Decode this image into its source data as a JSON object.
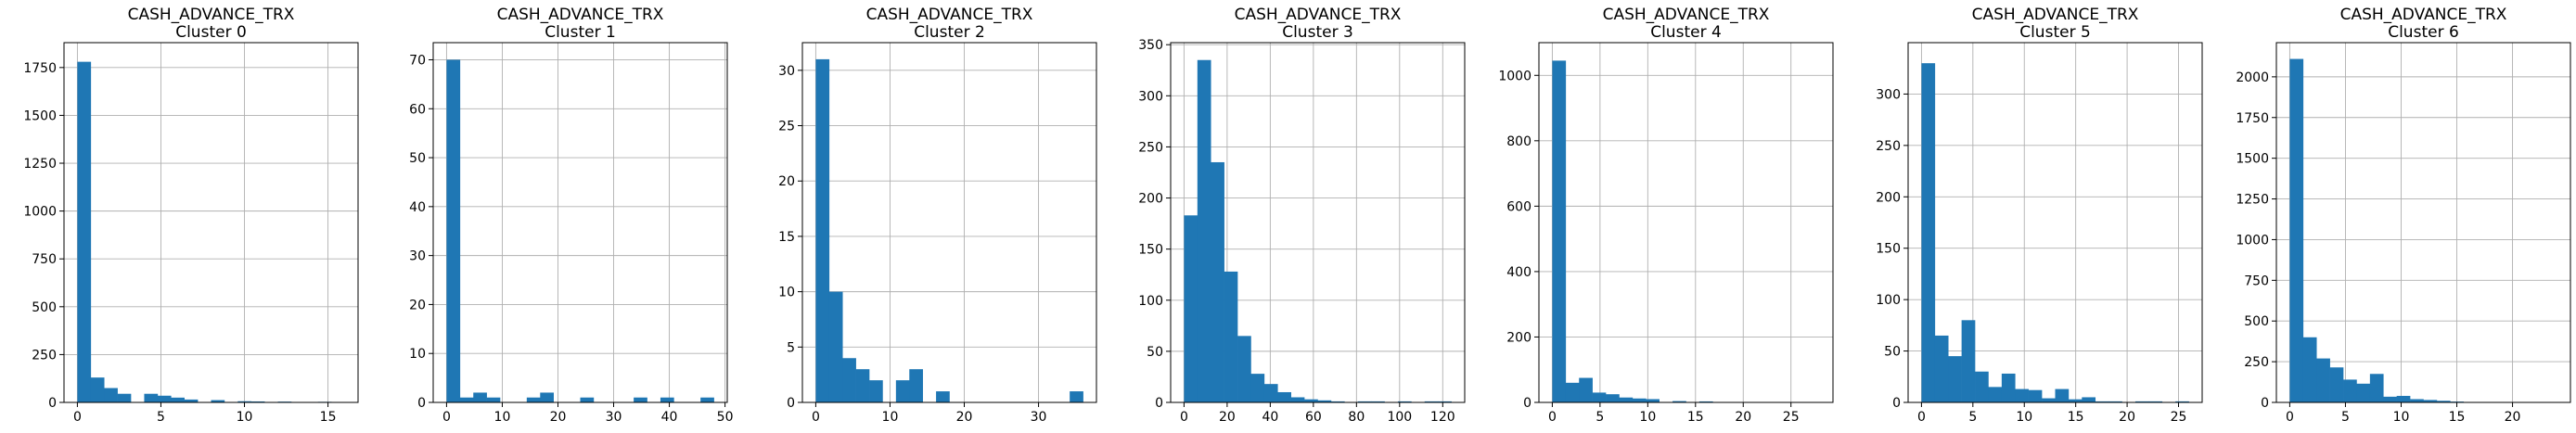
{
  "figure": {
    "bar_color": "#1f77b4",
    "grid": true
  },
  "chart_data": [
    {
      "type": "bar",
      "title": "CASH_ADVANCE_TRX",
      "subtitle": "Cluster 0",
      "xlim": [
        -0.8,
        16.8
      ],
      "ylim": [
        0,
        1880
      ],
      "xticks": [
        0,
        5,
        10,
        15
      ],
      "yticks": [
        0,
        250,
        500,
        750,
        1000,
        1250,
        1500,
        1750
      ],
      "bin_edges": [
        0,
        0.8,
        1.6,
        2.4,
        3.2,
        4.0,
        4.8,
        5.6,
        6.4,
        7.2,
        8.0,
        8.8,
        9.6,
        10.4,
        11.2,
        12.0,
        12.8,
        13.6,
        14.4,
        15.2,
        16.0
      ],
      "values": [
        1780,
        130,
        75,
        45,
        0,
        45,
        35,
        25,
        15,
        0,
        12,
        0,
        6,
        5,
        0,
        4,
        0,
        0,
        3,
        2
      ]
    },
    {
      "type": "bar",
      "title": "CASH_ADVANCE_TRX",
      "subtitle": "Cluster 1",
      "xlim": [
        -2.4,
        50.4
      ],
      "ylim": [
        0,
        73.5
      ],
      "xticks": [
        0,
        10,
        20,
        30,
        40,
        50
      ],
      "yticks": [
        0,
        10,
        20,
        30,
        40,
        50,
        60,
        70
      ],
      "bin_edges": [
        0,
        2.4,
        4.8,
        7.2,
        9.6,
        12.0,
        14.4,
        16.8,
        19.2,
        21.6,
        24.0,
        26.4,
        28.8,
        31.2,
        33.6,
        36.0,
        38.4,
        40.8,
        43.2,
        45.6,
        48.0
      ],
      "values": [
        70,
        1,
        2,
        1,
        0,
        0,
        1,
        2,
        0,
        0,
        1,
        0,
        0,
        0,
        1,
        0,
        1,
        0,
        0,
        1
      ]
    },
    {
      "type": "bar",
      "title": "CASH_ADVANCE_TRX",
      "subtitle": "Cluster 2",
      "xlim": [
        -1.8,
        37.8
      ],
      "ylim": [
        0,
        32.5
      ],
      "xticks": [
        0,
        10,
        20,
        30
      ],
      "yticks": [
        0,
        5,
        10,
        15,
        20,
        25,
        30
      ],
      "bin_edges": [
        0,
        1.8,
        3.6,
        5.4,
        7.2,
        9.0,
        10.8,
        12.6,
        14.4,
        16.2,
        18.0,
        19.8,
        21.6,
        23.4,
        25.2,
        27.0,
        28.8,
        30.6,
        32.4,
        34.2,
        36.0
      ],
      "values": [
        31,
        10,
        4,
        3,
        2,
        0,
        2,
        3,
        0,
        1,
        0,
        0,
        0,
        0,
        0,
        0,
        0,
        0,
        0,
        1
      ]
    },
    {
      "type": "bar",
      "title": "CASH_ADVANCE_TRX",
      "subtitle": "Cluster 3",
      "xlim": [
        -6.2,
        130.2
      ],
      "ylim": [
        0,
        352
      ],
      "xticks": [
        0,
        20,
        40,
        60,
        80,
        100,
        120
      ],
      "yticks": [
        0,
        50,
        100,
        150,
        200,
        250,
        300,
        350
      ],
      "bin_edges": [
        0,
        6.2,
        12.4,
        18.6,
        24.8,
        31.0,
        37.2,
        43.4,
        49.6,
        55.8,
        62.0,
        68.2,
        74.4,
        80.6,
        86.8,
        93.0,
        99.2,
        105.4,
        111.6,
        117.8,
        124.0
      ],
      "values": [
        183,
        335,
        235,
        128,
        65,
        28,
        18,
        10,
        5,
        3,
        2,
        1,
        0,
        1,
        1,
        0,
        1,
        0,
        1,
        1
      ]
    },
    {
      "type": "bar",
      "title": "CASH_ADVANCE_TRX",
      "subtitle": "Cluster 4",
      "xlim": [
        -1.4,
        29.4
      ],
      "ylim": [
        0,
        1100
      ],
      "xticks": [
        0,
        5,
        10,
        15,
        20,
        25
      ],
      "yticks": [
        0,
        200,
        400,
        600,
        800,
        1000
      ],
      "bin_edges": [
        0,
        1.4,
        2.8,
        4.2,
        5.6,
        7.0,
        8.4,
        9.8,
        11.2,
        12.6,
        14.0,
        15.4,
        16.8,
        18.2,
        19.6,
        21.0,
        22.4,
        23.8,
        25.2,
        26.6,
        28.0
      ],
      "values": [
        1045,
        60,
        75,
        30,
        25,
        15,
        12,
        10,
        0,
        4,
        0,
        3,
        0,
        0,
        0,
        0,
        0,
        0,
        0,
        1
      ]
    },
    {
      "type": "bar",
      "title": "CASH_ADVANCE_TRX",
      "subtitle": "Cluster 5",
      "xlim": [
        -1.3,
        27.3
      ],
      "ylim": [
        0,
        350
      ],
      "xticks": [
        0,
        5,
        10,
        15,
        20,
        25
      ],
      "yticks": [
        0,
        50,
        100,
        150,
        200,
        250,
        300
      ],
      "bin_edges": [
        0,
        1.3,
        2.6,
        3.9,
        5.2,
        6.5,
        7.8,
        9.1,
        10.4,
        11.7,
        13.0,
        14.3,
        15.6,
        16.9,
        18.2,
        19.5,
        20.8,
        22.1,
        23.4,
        24.7,
        26.0
      ],
      "values": [
        330,
        65,
        45,
        80,
        30,
        15,
        28,
        13,
        12,
        4,
        13,
        3,
        5,
        1,
        1,
        0,
        1,
        1,
        0,
        1
      ]
    },
    {
      "type": "bar",
      "title": "CASH_ADVANCE_TRX",
      "subtitle": "Cluster 6",
      "xlim": [
        -1.2,
        25.2
      ],
      "ylim": [
        0,
        2210
      ],
      "xticks": [
        0,
        5,
        10,
        15,
        20
      ],
      "yticks": [
        0,
        250,
        500,
        750,
        1000,
        1250,
        1500,
        1750,
        2000
      ],
      "bin_edges": [
        0,
        1.2,
        2.4,
        3.6,
        4.8,
        6.0,
        7.2,
        8.4,
        9.6,
        10.8,
        12.0,
        13.2,
        14.4,
        15.6,
        16.8,
        18.0,
        19.2,
        20.4,
        21.6,
        22.8,
        24.0
      ],
      "values": [
        2110,
        400,
        270,
        215,
        140,
        115,
        175,
        35,
        40,
        20,
        15,
        10,
        5,
        0,
        0,
        0,
        0,
        0,
        0,
        2
      ]
    }
  ]
}
